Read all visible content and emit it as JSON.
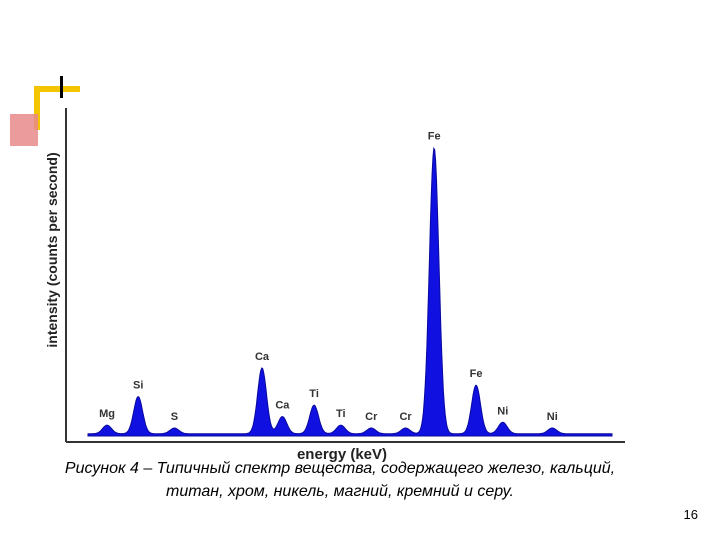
{
  "chart_data": {
    "type": "area",
    "xlabel": "energy (keV)",
    "ylabel": "intensity (counts per second)",
    "color": "#1010e0",
    "peak_labels": [
      {
        "label": "Mg",
        "energy": 1.25,
        "value": 0.03
      },
      {
        "label": "Si",
        "energy": 1.74,
        "value": 0.13
      },
      {
        "label": "S",
        "energy": 2.31,
        "value": 0.02
      },
      {
        "label": "Ca",
        "energy": 3.69,
        "value": 0.23
      },
      {
        "label": "Ca",
        "energy": 4.01,
        "value": 0.06
      },
      {
        "label": "Ti",
        "energy": 4.51,
        "value": 0.1
      },
      {
        "label": "Ti",
        "energy": 4.93,
        "value": 0.03
      },
      {
        "label": "Cr",
        "energy": 5.41,
        "value": 0.02
      },
      {
        "label": "Cr",
        "energy": 5.95,
        "value": 0.02
      },
      {
        "label": "Fe",
        "energy": 6.4,
        "value": 1.0
      },
      {
        "label": "Fe",
        "energy": 7.06,
        "value": 0.17
      },
      {
        "label": "Ni",
        "energy": 7.48,
        "value": 0.04
      },
      {
        "label": "Ni",
        "energy": 8.26,
        "value": 0.02
      }
    ]
  },
  "caption": {
    "line1": "Рисунок 4 – Типичный спектр вещества, содержащего железо, кальций,",
    "line2": "титан, хром, никель, магний, кремний и серу."
  },
  "page_number": "16",
  "colors": {
    "accent_yellow": "#f5c400",
    "accent_red": "#e88a8a",
    "spectrum_blue": "#1010e0"
  }
}
